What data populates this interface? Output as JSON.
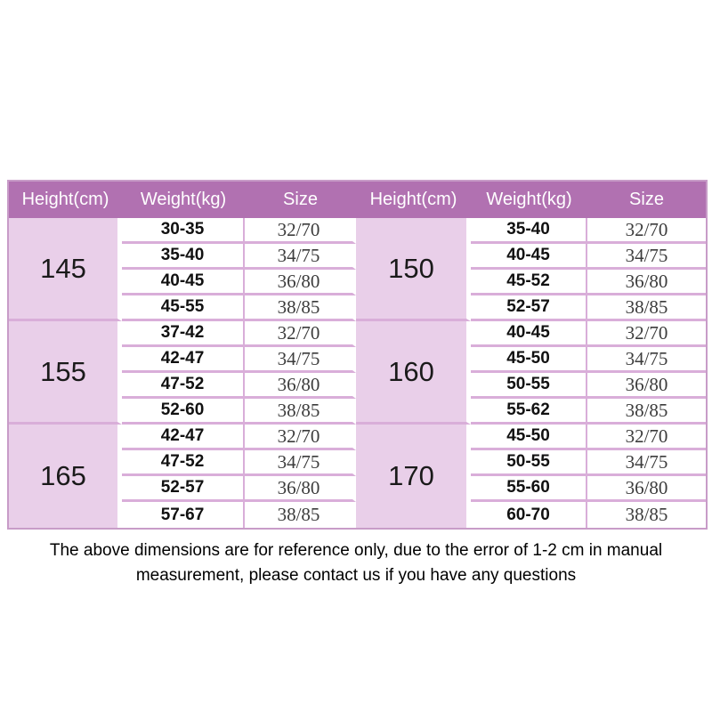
{
  "chart_data": {
    "type": "table",
    "headers": [
      "Height(cm)",
      "Weight(kg)",
      "Size",
      "Height(cm)",
      "Weight(kg)",
      "Size"
    ],
    "left_sections": [
      {
        "height": "145",
        "rows": [
          [
            "30-35",
            "32/70"
          ],
          [
            "35-40",
            "34/75"
          ],
          [
            "40-45",
            "36/80"
          ],
          [
            "45-55",
            "38/85"
          ]
        ]
      },
      {
        "height": "155",
        "rows": [
          [
            "37-42",
            "32/70"
          ],
          [
            "42-47",
            "34/75"
          ],
          [
            "47-52",
            "36/80"
          ],
          [
            "52-60",
            "38/85"
          ]
        ]
      },
      {
        "height": "165",
        "rows": [
          [
            "42-47",
            "32/70"
          ],
          [
            "47-52",
            "34/75"
          ],
          [
            "52-57",
            "36/80"
          ],
          [
            "57-67",
            "38/85"
          ]
        ]
      }
    ],
    "right_sections": [
      {
        "height": "150",
        "rows": [
          [
            "35-40",
            "32/70"
          ],
          [
            "40-45",
            "34/75"
          ],
          [
            "45-52",
            "36/80"
          ],
          [
            "52-57",
            "38/85"
          ]
        ]
      },
      {
        "height": "160",
        "rows": [
          [
            "40-45",
            "32/70"
          ],
          [
            "45-50",
            "34/75"
          ],
          [
            "50-55",
            "36/80"
          ],
          [
            "55-62",
            "38/85"
          ]
        ]
      },
      {
        "height": "170",
        "rows": [
          [
            "45-50",
            "32/70"
          ],
          [
            "50-55",
            "34/75"
          ],
          [
            "55-60",
            "36/80"
          ],
          [
            "60-70",
            "38/85"
          ]
        ]
      }
    ]
  },
  "footer": {
    "lines": [
      "The above dimensions are for reference only, due to the error of 1-2 cm in manual",
      "measurement, please contact us if you have any questions"
    ]
  },
  "colors": {
    "header_bg": "#b171b1",
    "header_text": "#ffffff",
    "height_cell_bg": "#e9cfe9",
    "cell_bg": "#ffffff",
    "border": "#d9aed9",
    "outer_border": "#c89cc8",
    "size_text": "#3c3c3c",
    "text": "#111111",
    "page_bg": "#ffffff"
  }
}
